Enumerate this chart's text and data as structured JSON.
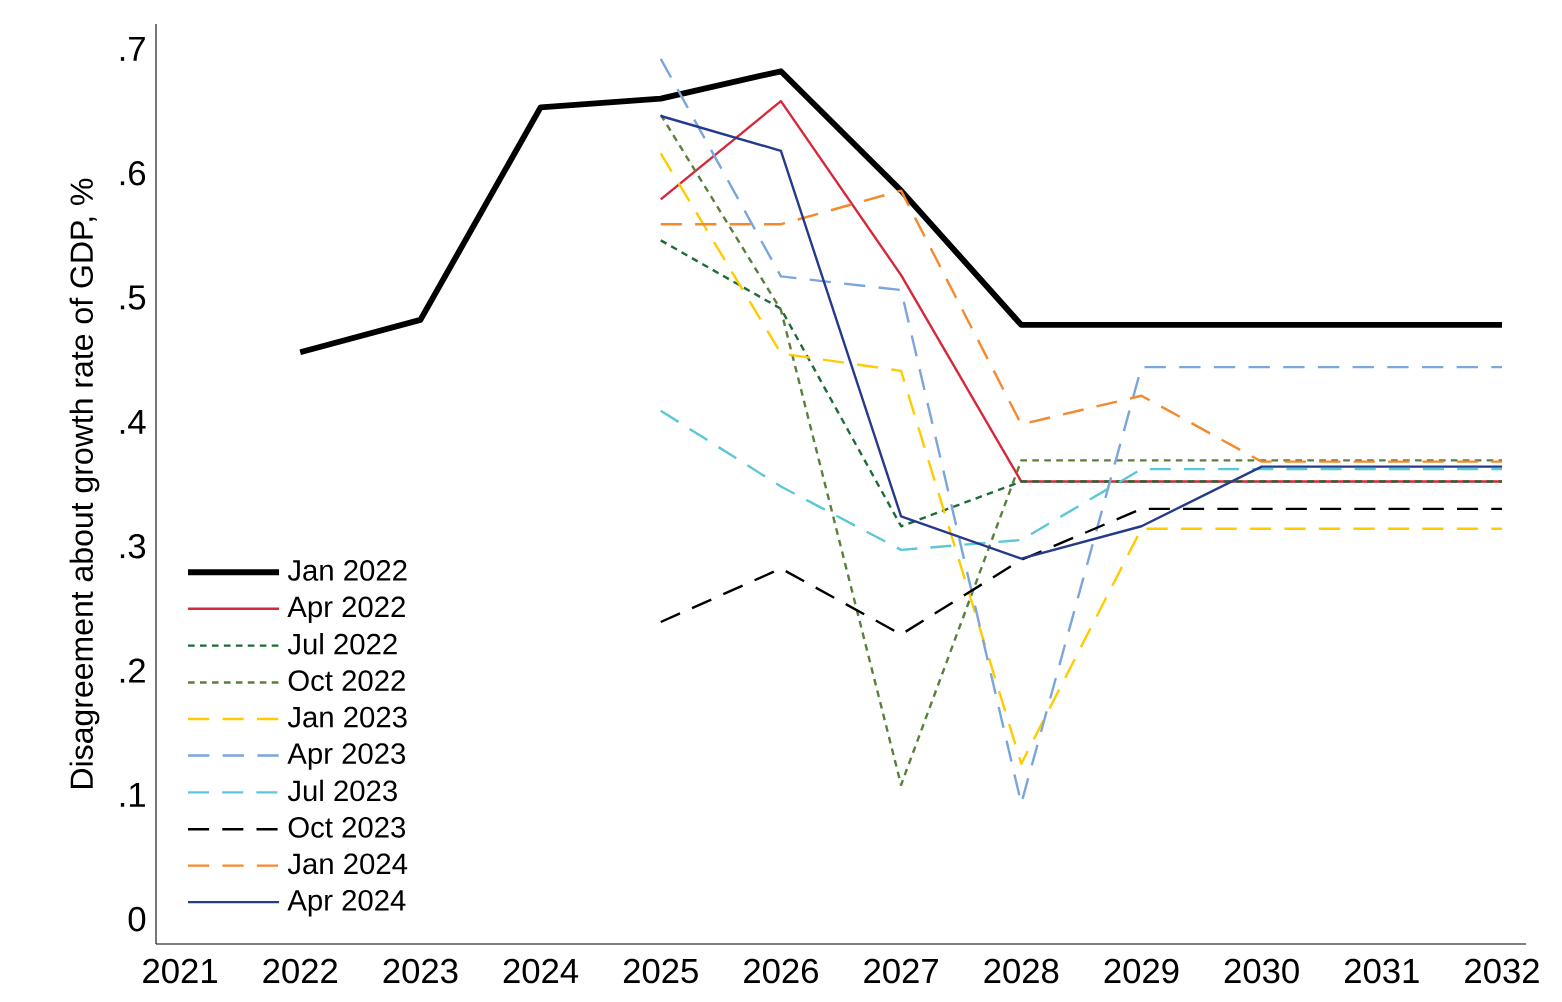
{
  "chart_data": {
    "type": "line",
    "ylabel": "Disagreement about growth rate of GDP, %",
    "x": [
      2022,
      2023,
      2024,
      2025,
      2026,
      2027,
      2028,
      2029,
      2030,
      2031,
      2032
    ],
    "xlim": [
      2020.8,
      2032.2
    ],
    "xticks": [
      2021,
      2022,
      2023,
      2024,
      2025,
      2026,
      2027,
      2028,
      2029,
      2030,
      2031,
      2032
    ],
    "ylim": [
      -0.02,
      0.72
    ],
    "yticks": [
      {
        "value": 0,
        "label": "0"
      },
      {
        "value": 0.1,
        "label": ".1"
      },
      {
        "value": 0.2,
        "label": ".2"
      },
      {
        "value": 0.3,
        "label": ".3"
      },
      {
        "value": 0.4,
        "label": ".4"
      },
      {
        "value": 0.5,
        "label": ".5"
      },
      {
        "value": 0.6,
        "label": ".6"
      },
      {
        "value": 0.7,
        "label": ".7"
      }
    ],
    "grid": false,
    "legend": "bottom left",
    "series": [
      {
        "name": "Jan 2022",
        "color": "#000000",
        "line_style": "solid",
        "values": [
          0.456,
          0.482,
          0.653,
          0.66,
          0.682,
          0.586,
          0.478,
          0.478,
          0.478,
          0.478,
          0.478
        ]
      },
      {
        "name": "Apr 2022",
        "color": "#d62839",
        "line_style": "solid",
        "values": [
          null,
          null,
          null,
          0.579,
          0.658,
          0.518,
          0.352,
          0.352,
          0.352,
          0.352,
          0.352
        ]
      },
      {
        "name": "Jul 2022",
        "color": "#1e6b3a",
        "line_style": "dotted",
        "values": [
          null,
          null,
          null,
          0.546,
          0.491,
          0.316,
          0.352,
          0.352,
          0.352,
          0.352,
          0.352
        ]
      },
      {
        "name": "Oct 2022",
        "color": "#5a7f3a",
        "line_style": "dotted",
        "values": [
          null,
          null,
          null,
          0.647,
          0.49,
          0.108,
          0.369,
          0.369,
          0.369,
          0.369,
          0.369
        ]
      },
      {
        "name": "Jan 2023",
        "color": "#ffcc00",
        "line_style": "dashed",
        "values": [
          null,
          null,
          null,
          0.616,
          0.455,
          0.441,
          0.125,
          0.314,
          0.314,
          0.314,
          0.314
        ]
      },
      {
        "name": "Apr 2023",
        "color": "#7aa6dc",
        "line_style": "dashed",
        "values": [
          null,
          null,
          null,
          0.692,
          0.517,
          0.506,
          0.093,
          0.444,
          0.444,
          0.444,
          0.444
        ]
      },
      {
        "name": "Jul 2023",
        "color": "#5bc8d8",
        "line_style": "dashed",
        "values": [
          null,
          null,
          null,
          0.409,
          0.348,
          0.297,
          0.305,
          0.362,
          0.362,
          0.362,
          0.362
        ]
      },
      {
        "name": "Oct 2023",
        "color": "#000000",
        "line_style": "dashed",
        "values": [
          null,
          null,
          null,
          0.239,
          0.282,
          0.229,
          0.289,
          0.33,
          0.33,
          0.33,
          0.33
        ]
      },
      {
        "name": "Jan 2024",
        "color": "#f58a2c",
        "line_style": "dashed",
        "values": [
          null,
          null,
          null,
          0.559,
          0.559,
          0.586,
          0.398,
          0.421,
          0.368,
          0.368,
          0.368
        ]
      },
      {
        "name": "Apr 2024",
        "color": "#263a8c",
        "line_style": "solid",
        "values": [
          null,
          null,
          null,
          0.646,
          0.618,
          0.324,
          0.29,
          0.316,
          0.364,
          0.364,
          0.364
        ]
      }
    ]
  }
}
